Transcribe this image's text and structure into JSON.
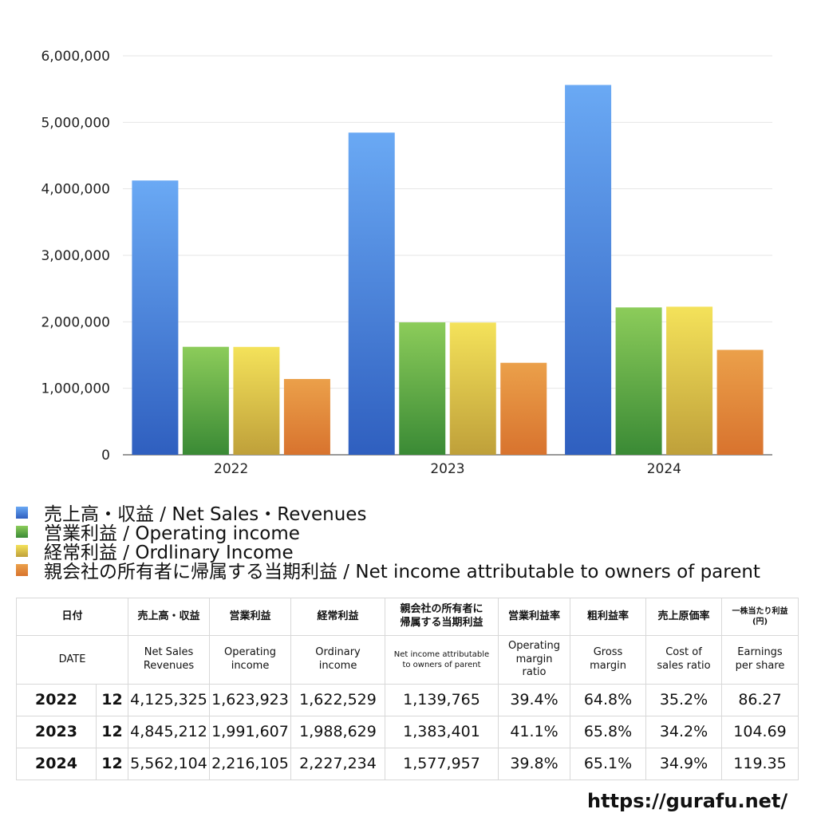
{
  "chart_data": {
    "type": "bar",
    "categories": [
      "2022",
      "2023",
      "2024"
    ],
    "series": [
      {
        "name": "売上高・収益 / Net Sales・Revenues",
        "values": [
          4125325,
          4845212,
          5562104
        ],
        "color_top": "#6aa9f4",
        "color_bottom": "#2f5fbf"
      },
      {
        "name": "営業利益 / Operating income",
        "values": [
          1623923,
          1991607,
          2216105
        ],
        "color_top": "#8ccc5a",
        "color_bottom": "#3a8a35"
      },
      {
        "name": "経常利益 / Ordlinary Income",
        "values": [
          1622529,
          1988629,
          2227234
        ],
        "color_top": "#f4e25a",
        "color_bottom": "#bfa03a"
      },
      {
        "name": "親会社の所有者に帰属する当期利益 / Net income attributable to owners of parent",
        "values": [
          1139765,
          1383401,
          1577957
        ],
        "color_top": "#eba04a",
        "color_bottom": "#d8732e"
      }
    ],
    "yticks": [
      "0",
      "1,000,000",
      "2,000,000",
      "3,000,000",
      "4,000,000",
      "5,000,000",
      "6,000,000"
    ],
    "ylim": [
      0,
      6000000
    ],
    "grid": true,
    "legend_position": "bottom"
  },
  "table": {
    "headers_jp": [
      "日付",
      "売上高・収益",
      "営業利益",
      "経常利益",
      "親会社の所有者に\n帰属する当期利益",
      "営業利益率",
      "粗利益率",
      "売上原価率",
      "一株当たり利益\n(円)"
    ],
    "headers_en": [
      "DATE",
      "Net Sales\nRevenues",
      "Operating\nincome",
      "Ordinary\nincome",
      "Net income attributable\nto owners of parent",
      "Operating\nmargin\nratio",
      "Gross\nmargin",
      "Cost of\nsales ratio",
      "Earnings\nper share"
    ],
    "rows": [
      {
        "year": "2022",
        "month": "12",
        "cells": [
          "4,125,325",
          "1,623,923",
          "1,622,529",
          "1,139,765",
          "39.4%",
          "64.8%",
          "35.2%",
          "86.27"
        ]
      },
      {
        "year": "2023",
        "month": "12",
        "cells": [
          "4,845,212",
          "1,991,607",
          "1,988,629",
          "1,383,401",
          "41.1%",
          "65.8%",
          "34.2%",
          "104.69"
        ]
      },
      {
        "year": "2024",
        "month": "12",
        "cells": [
          "5,562,104",
          "2,216,105",
          "2,227,234",
          "1,577,957",
          "39.8%",
          "65.1%",
          "34.9%",
          "119.35"
        ]
      }
    ]
  },
  "site_url": "https://gurafu.net/"
}
